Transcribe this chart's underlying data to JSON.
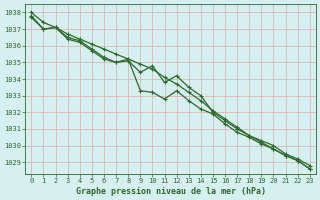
{
  "xlabel": "Graphe pression niveau de la mer (hPa)",
  "xlim": [
    -0.5,
    23.5
  ],
  "ylim": [
    1028.3,
    1038.5
  ],
  "yticks": [
    1029,
    1030,
    1031,
    1032,
    1033,
    1034,
    1035,
    1036,
    1037,
    1038
  ],
  "xticks": [
    0,
    1,
    2,
    3,
    4,
    5,
    6,
    7,
    8,
    9,
    10,
    11,
    12,
    13,
    14,
    15,
    16,
    17,
    18,
    19,
    20,
    21,
    22,
    23
  ],
  "bg_color": "#d6f0ef",
  "grid_color": "#dbb8b8",
  "line_color": "#2d6a2d",
  "series1": [
    1038.0,
    1037.4,
    1037.1,
    1036.7,
    1036.4,
    1036.1,
    1035.8,
    1035.5,
    1035.2,
    1034.9,
    1034.6,
    1034.1,
    1033.7,
    1033.2,
    1032.7,
    1032.1,
    1031.6,
    1031.1,
    1030.6,
    1030.3,
    1030.0,
    1029.5,
    1029.2,
    1028.8
  ],
  "series2": [
    1037.8,
    1037.0,
    1037.1,
    1036.5,
    1036.3,
    1035.8,
    1035.3,
    1035.0,
    1035.1,
    1034.4,
    1034.8,
    1033.8,
    1034.2,
    1033.5,
    1033.0,
    1032.0,
    1031.5,
    1031.0,
    1030.6,
    1030.2,
    1029.8,
    1029.4,
    1029.1,
    1028.6
  ],
  "series3": [
    1037.7,
    1037.0,
    1037.1,
    1036.4,
    1036.2,
    1035.7,
    1035.2,
    1035.0,
    1035.2,
    1033.3,
    1033.2,
    1032.8,
    1033.3,
    1032.7,
    1032.2,
    1031.9,
    1031.3,
    1030.8,
    1030.5,
    1030.1,
    1029.8,
    1029.4,
    1029.1,
    1028.6
  ],
  "marker": "+",
  "marker_size": 3.5,
  "linewidth": 0.9,
  "tick_fontsize": 5.0,
  "label_fontsize": 6.0
}
